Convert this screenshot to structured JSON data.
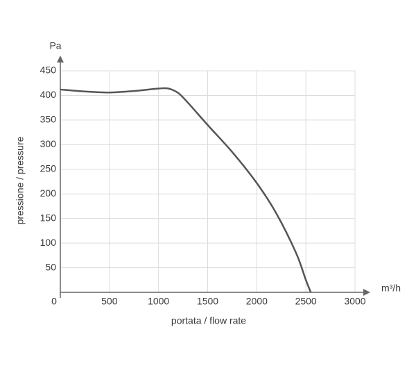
{
  "chart_data": {
    "type": "line",
    "x_label": "portata / flow rate",
    "y_label": "pressione / pressure",
    "x_unit": "m³/h",
    "y_unit": "Pa",
    "x": [
      0,
      250,
      500,
      750,
      1000,
      1100,
      1200,
      1300,
      1500,
      1750,
      2000,
      2200,
      2400,
      2500,
      2550
    ],
    "values": [
      412,
      408,
      406,
      409,
      414,
      414,
      405,
      385,
      340,
      285,
      222,
      160,
      80,
      25,
      0
    ],
    "color": "#555555",
    "xlim": [
      0,
      3000
    ],
    "ylim": [
      0,
      450
    ],
    "xticks": [
      0,
      500,
      1000,
      1500,
      2000,
      2500,
      3000
    ],
    "yticks": [
      50,
      100,
      150,
      200,
      250,
      300,
      350,
      400,
      450
    ],
    "grid": true
  }
}
